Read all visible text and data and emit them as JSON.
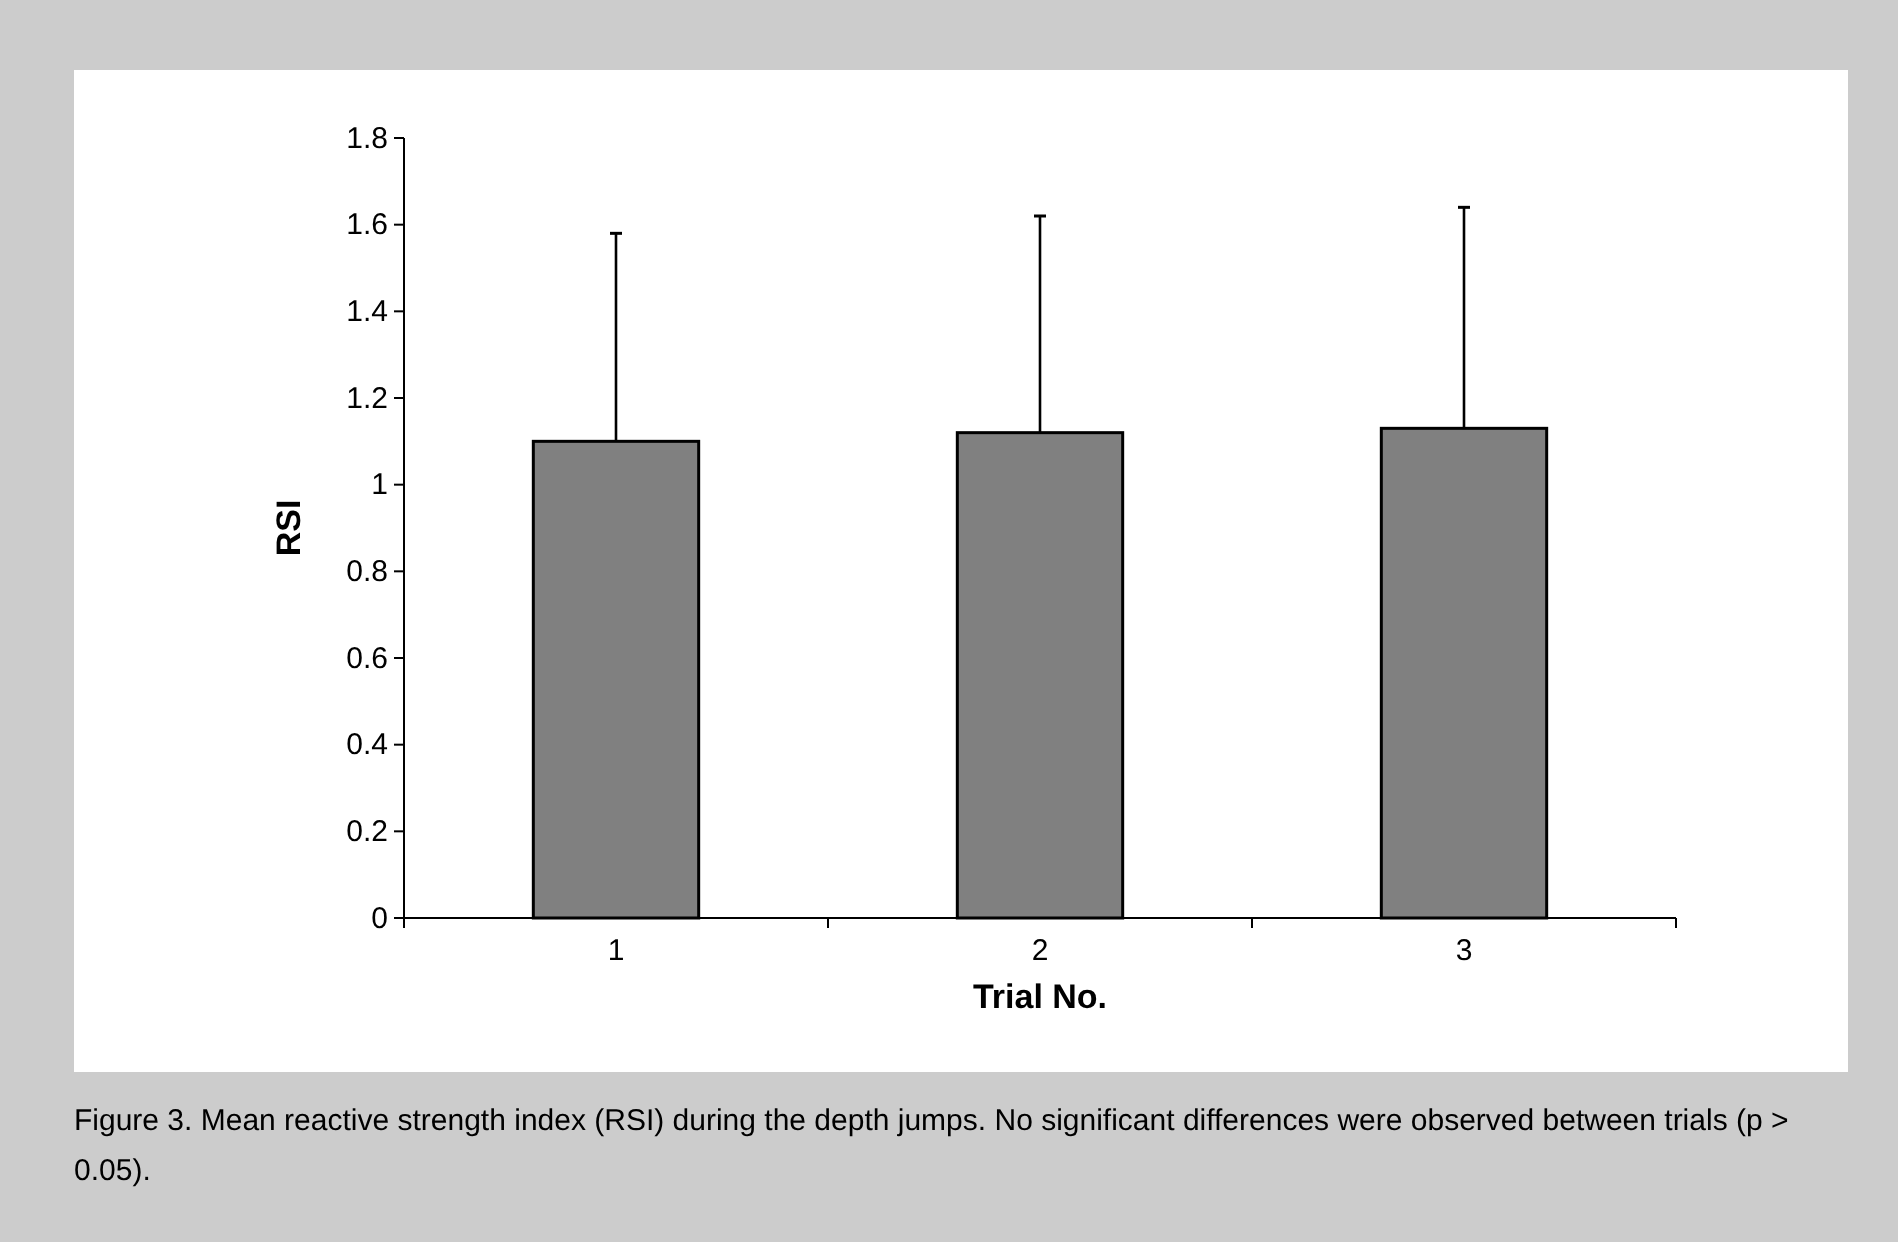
{
  "chart_data": {
    "type": "bar",
    "xlabel": "Trial No.",
    "ylabel": "RSI",
    "categories": [
      "1",
      "2",
      "3"
    ],
    "values": [
      1.1,
      1.12,
      1.13
    ],
    "errors": [
      [
        1.1,
        1.58
      ],
      [
        1.12,
        1.62
      ],
      [
        1.13,
        1.64
      ]
    ],
    "color": "#808080",
    "ylim": [
      0,
      1.8
    ],
    "yticks": [
      0,
      0.2,
      0.4,
      0.6,
      0.8,
      1,
      1.2,
      1.4,
      1.6,
      1.8
    ],
    "annotations": [
      "Figure 3. Mean reactive strength index (RSI) during the depth jumps. No significant differences were observed between trials (p > 0.05)."
    ]
  }
}
